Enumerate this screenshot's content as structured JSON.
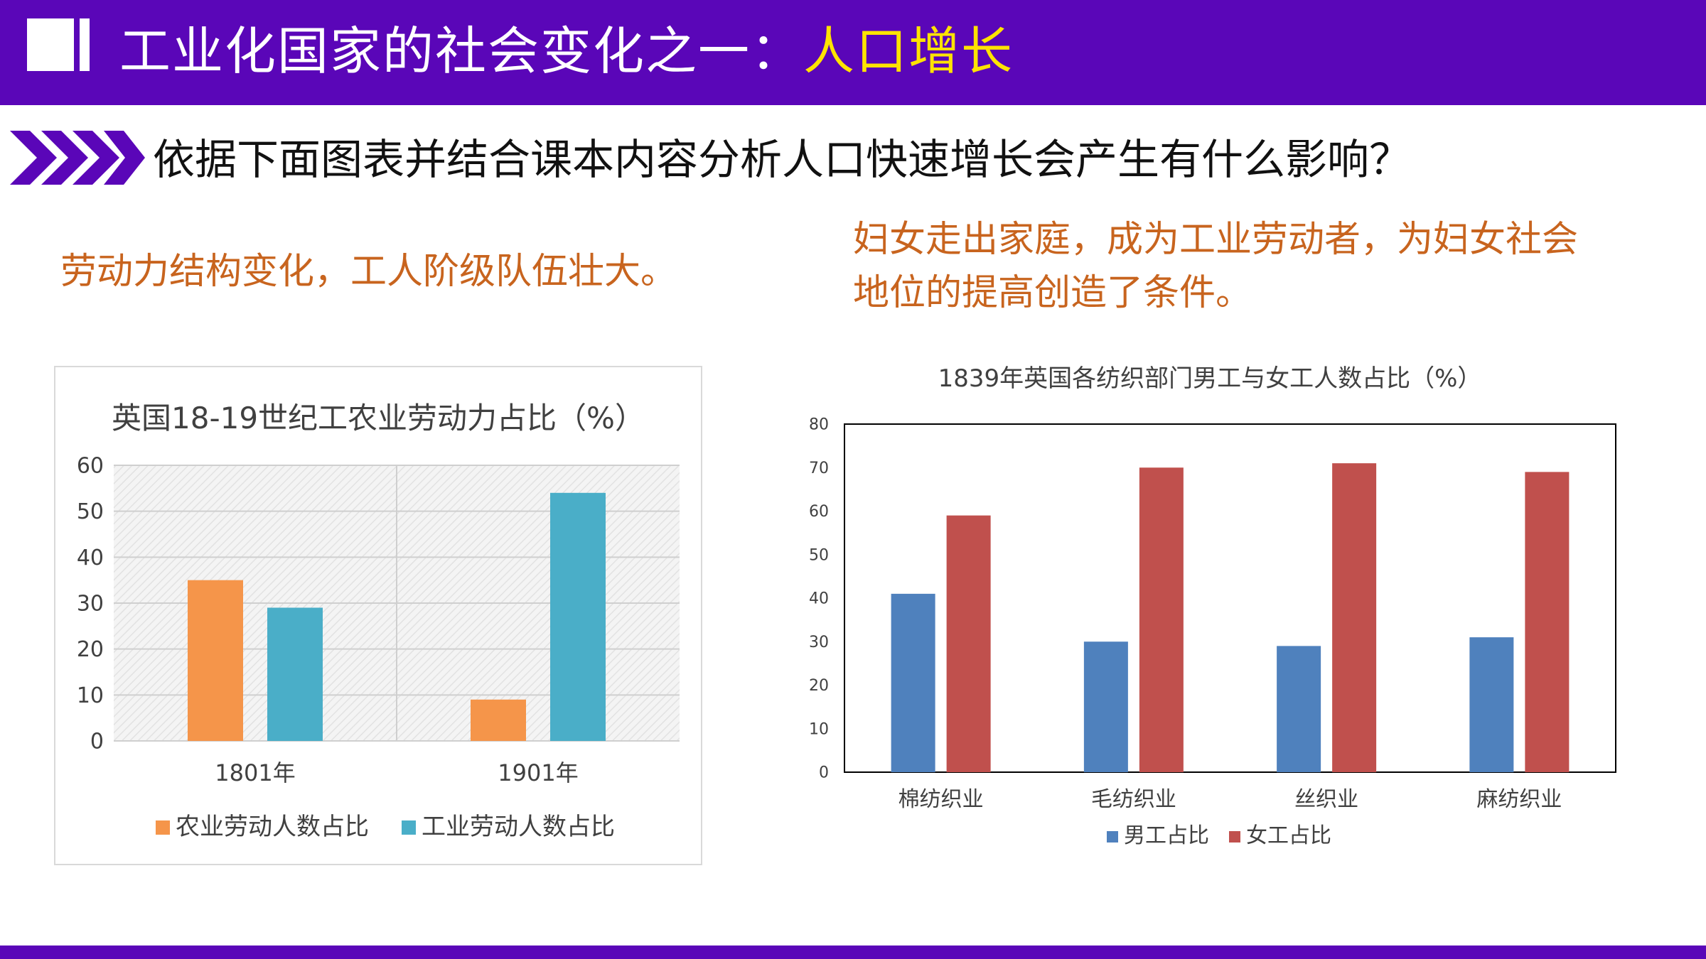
{
  "header": {
    "title_prefix": "工业化国家的社会变化之一：",
    "title_highlight": "人口增长"
  },
  "question": "依据下面图表并结合课本内容分析人口快速增长会产生有什么影响？",
  "notes": {
    "left": "劳动力结构变化，工人阶级队伍壮大。",
    "right": "妇女走出家庭，成为工业劳动者，为妇女社会地位的提高创造了条件。"
  },
  "colors": {
    "header_bg": "#5a06b8",
    "title_highlight": "#ffe300",
    "note_text": "#c8641e",
    "chart1_series": [
      "#f5954a",
      "#4aaec8"
    ],
    "chart2_series": [
      "#4f81bd",
      "#c0504d"
    ]
  },
  "chart_data": [
    {
      "type": "bar",
      "title": "英国18-19世纪工农业劳动力占比（%）",
      "categories": [
        "1801年",
        "1901年"
      ],
      "series": [
        {
          "name": "农业劳动人数占比",
          "values": [
            35,
            9
          ]
        },
        {
          "name": "工业劳动人数占比",
          "values": [
            29,
            54
          ]
        }
      ],
      "ylim": [
        0,
        60
      ],
      "yticks": [
        0,
        10,
        20,
        30,
        40,
        50,
        60
      ],
      "grid": true,
      "legend": "bottom"
    },
    {
      "type": "bar",
      "title": "1839年英国各纺织部门男工与女工人数占比（%）",
      "categories": [
        "棉纺织业",
        "毛纺织业",
        "丝织业",
        "麻纺织业"
      ],
      "series": [
        {
          "name": "男工占比",
          "values": [
            41,
            30,
            29,
            31
          ]
        },
        {
          "name": "女工占比",
          "values": [
            59,
            70,
            71,
            69
          ]
        }
      ],
      "ylim": [
        0,
        80
      ],
      "yticks": [
        0,
        10,
        20,
        30,
        40,
        50,
        60,
        70,
        80
      ],
      "grid": false,
      "legend": "bottom"
    }
  ]
}
